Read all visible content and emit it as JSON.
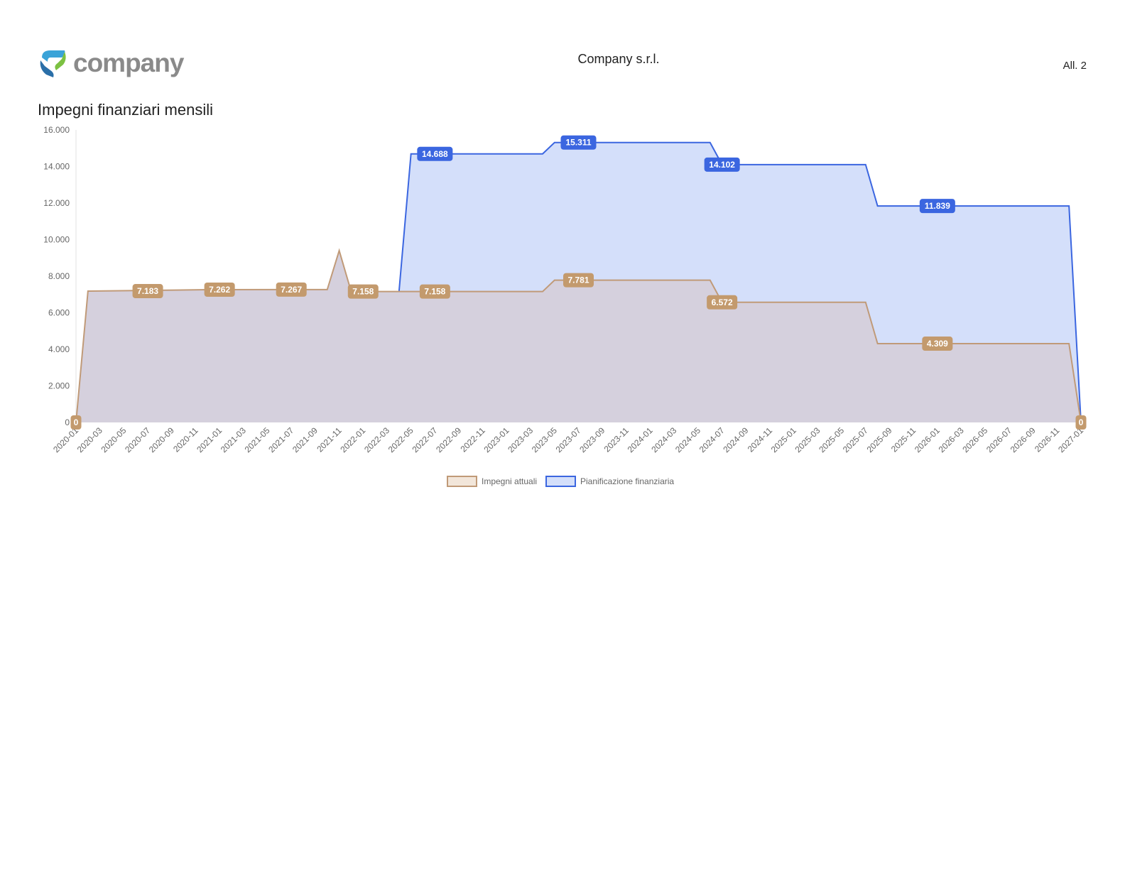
{
  "header": {
    "logo_text": "company",
    "company_name": "Company s.r.l.",
    "allegato": "All. 2"
  },
  "colors": {
    "impegni_line": "#c09a78",
    "impegni_fill": "#d5d0dd",
    "pianificazione_line": "#3b66e0",
    "pianificazione_fill": "#d4dffa",
    "impegni_label_bg": "#c39a6d",
    "pianificazione_label_bg": "#3b66e0"
  },
  "chart_data": {
    "type": "area",
    "title": "Impegni finanziari mensili",
    "ylim": [
      0,
      16000
    ],
    "yticks": [
      "0",
      "2.000",
      "4.000",
      "6.000",
      "8.000",
      "10.000",
      "12.000",
      "14.000",
      "16.000"
    ],
    "x_start": "2020-01",
    "x_labels": [
      "2020-01",
      "2020-03",
      "2020-05",
      "2020-07",
      "2020-09",
      "2020-11",
      "2021-01",
      "2021-03",
      "2021-05",
      "2021-07",
      "2021-09",
      "2021-11",
      "2022-01",
      "2022-03",
      "2022-05",
      "2022-07",
      "2022-09",
      "2022-11",
      "2023-01",
      "2023-03",
      "2023-05",
      "2023-07",
      "2023-09",
      "2023-11",
      "2024-01",
      "2024-03",
      "2024-05",
      "2024-07",
      "2024-09",
      "2024-11",
      "2025-01",
      "2025-03",
      "2025-05",
      "2025-07",
      "2025-09",
      "2025-11",
      "2026-01",
      "2026-03",
      "2026-05",
      "2026-07",
      "2026-09",
      "2026-11",
      "2027-01"
    ],
    "grid": false,
    "legend_position": "bottom",
    "series": [
      {
        "name": "Impegni attuali",
        "points": [
          [
            "2020-01",
            0
          ],
          [
            "2020-02",
            7183
          ],
          [
            "2020-12",
            7262
          ],
          [
            "2021-06",
            7267
          ],
          [
            "2021-10",
            7267
          ],
          [
            "2021-11",
            9400
          ],
          [
            "2021-12",
            7158
          ],
          [
            "2022-05",
            7158
          ],
          [
            "2023-04",
            7158
          ],
          [
            "2023-05",
            7781
          ],
          [
            "2024-06",
            7781
          ],
          [
            "2024-07",
            6572
          ],
          [
            "2025-07",
            6572
          ],
          [
            "2025-08",
            4309
          ],
          [
            "2026-12",
            4309
          ],
          [
            "2027-01",
            0
          ]
        ],
        "labels": [
          {
            "x": "2020-01",
            "value": 0,
            "text": "0"
          },
          {
            "x": "2020-07",
            "value": 7183,
            "text": "7.183"
          },
          {
            "x": "2021-01",
            "value": 7262,
            "text": "7.262"
          },
          {
            "x": "2021-07",
            "value": 7267,
            "text": "7.267"
          },
          {
            "x": "2022-01",
            "value": 7158,
            "text": "7.158"
          },
          {
            "x": "2022-07",
            "value": 7158,
            "text": "7.158"
          },
          {
            "x": "2023-07",
            "value": 7781,
            "text": "7.781"
          },
          {
            "x": "2024-07",
            "value": 6572,
            "text": "6.572"
          },
          {
            "x": "2026-01",
            "value": 4309,
            "text": "4.309"
          },
          {
            "x": "2027-01",
            "value": 0,
            "text": "0"
          }
        ]
      },
      {
        "name": "Pianificazione finanziaria",
        "points": [
          [
            "2022-04",
            7158
          ],
          [
            "2022-05",
            14688
          ],
          [
            "2023-04",
            14688
          ],
          [
            "2023-05",
            15311
          ],
          [
            "2024-06",
            15311
          ],
          [
            "2024-07",
            14102
          ],
          [
            "2025-07",
            14102
          ],
          [
            "2025-08",
            11839
          ],
          [
            "2026-12",
            11839
          ],
          [
            "2027-01",
            0
          ]
        ],
        "labels": [
          {
            "x": "2022-07",
            "value": 14688,
            "text": "14.688"
          },
          {
            "x": "2023-07",
            "value": 15311,
            "text": "15.311"
          },
          {
            "x": "2024-07",
            "value": 14102,
            "text": "14.102"
          },
          {
            "x": "2026-01",
            "value": 11839,
            "text": "11.839"
          }
        ]
      }
    ]
  }
}
